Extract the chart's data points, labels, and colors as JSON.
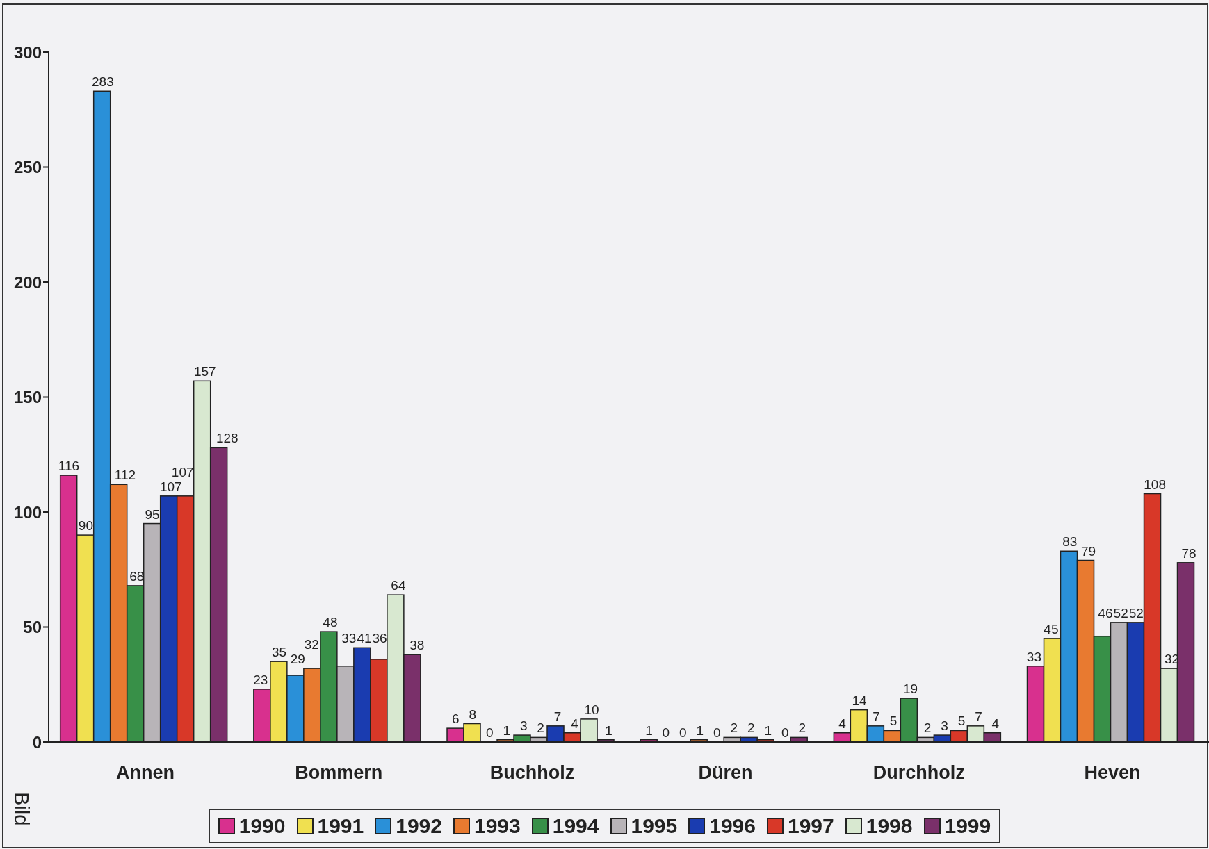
{
  "chart_data": {
    "type": "bar",
    "categories": [
      "Annen",
      "Bommern",
      "Buchholz",
      "Düren",
      "Durchholz",
      "Heven"
    ],
    "series": [
      {
        "name": "1990",
        "color": "#d8308e",
        "values": [
          116,
          23,
          6,
          1,
          4,
          33
        ]
      },
      {
        "name": "1991",
        "color": "#f0e050",
        "values": [
          90,
          35,
          8,
          0,
          14,
          45
        ]
      },
      {
        "name": "1992",
        "color": "#2a90d8",
        "values": [
          283,
          29,
          0,
          0,
          7,
          83
        ]
      },
      {
        "name": "1993",
        "color": "#e87a30",
        "values": [
          112,
          32,
          1,
          1,
          5,
          79
        ]
      },
      {
        "name": "1994",
        "color": "#389048",
        "values": [
          68,
          48,
          3,
          0,
          19,
          46
        ]
      },
      {
        "name": "1995",
        "color": "#b8b4b8",
        "values": [
          95,
          33,
          2,
          2,
          2,
          52
        ]
      },
      {
        "name": "1996",
        "color": "#1a3cb0",
        "values": [
          107,
          41,
          7,
          2,
          3,
          52
        ]
      },
      {
        "name": "1997",
        "color": "#d83828",
        "values": [
          107,
          36,
          4,
          1,
          5,
          108
        ]
      },
      {
        "name": "1998",
        "color": "#d8e8d0",
        "values": [
          157,
          64,
          10,
          0,
          7,
          32
        ]
      },
      {
        "name": "1999",
        "color": "#7a306a",
        "values": [
          128,
          38,
          1,
          2,
          4,
          78
        ]
      }
    ],
    "ylim": [
      0,
      300
    ],
    "yticks": [
      0,
      50,
      100,
      150,
      200,
      250,
      300
    ],
    "data_labels": true,
    "legend": "bottom",
    "annotations": [
      "Bild"
    ]
  }
}
